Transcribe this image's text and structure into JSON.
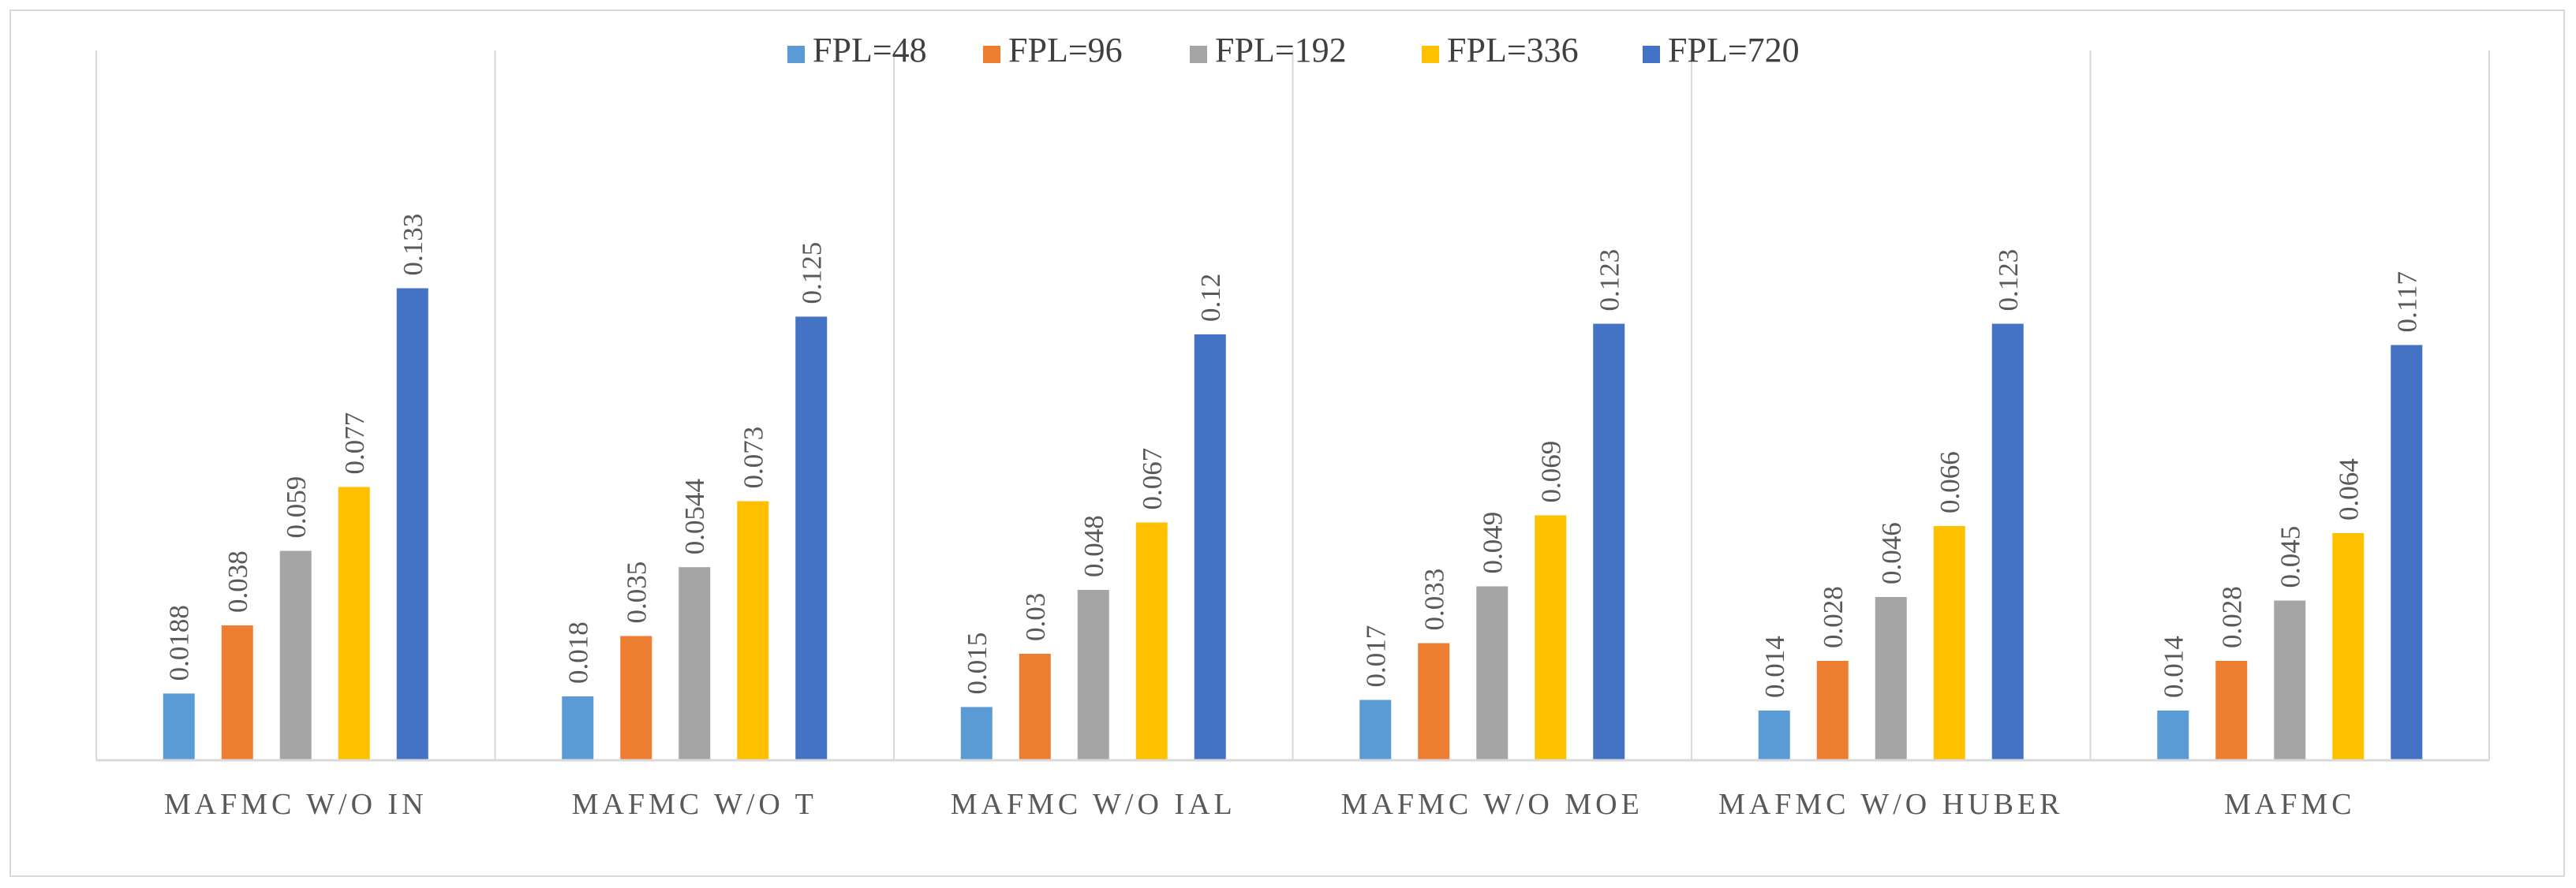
{
  "chart_data": {
    "type": "bar",
    "title": "",
    "xlabel": "",
    "ylabel": "",
    "ylim": [
      0,
      0.2
    ],
    "grid": "vertical separators",
    "legend_position": "top",
    "categories": [
      "MAFMC W/O IN",
      "MAFMC W/O T",
      "MAFMC W/O IAL",
      "MAFMC W/O MOE",
      "MAFMC W/O HUBER",
      "MAFMC"
    ],
    "series": [
      {
        "name": "FPL=48",
        "color": "#5b9bd5",
        "values": [
          0.0188,
          0.018,
          0.015,
          0.017,
          0.014,
          0.014
        ],
        "labels": [
          "0.0188",
          "0.018",
          "0.015",
          "0.017",
          "0.014",
          "0.014"
        ]
      },
      {
        "name": "FPL=96",
        "color": "#ed7d31",
        "values": [
          0.038,
          0.035,
          0.03,
          0.033,
          0.028,
          0.028
        ],
        "labels": [
          "0.038",
          "0.035",
          "0.03",
          "0.033",
          "0.028",
          "0.028"
        ]
      },
      {
        "name": "FPL=192",
        "color": "#a5a5a5",
        "values": [
          0.059,
          0.0544,
          0.048,
          0.049,
          0.046,
          0.045
        ],
        "labels": [
          "0.059",
          "0.0544",
          "0.048",
          "0.049",
          "0.046",
          "0.045"
        ]
      },
      {
        "name": "FPL=336",
        "color": "#ffc000",
        "values": [
          0.077,
          0.073,
          0.067,
          0.069,
          0.066,
          0.064
        ],
        "labels": [
          "0.077",
          "0.073",
          "0.067",
          "0.069",
          "0.066",
          "0.064"
        ]
      },
      {
        "name": "FPL=720",
        "color": "#4472c4",
        "values": [
          0.133,
          0.125,
          0.12,
          0.123,
          0.123,
          0.117
        ],
        "labels": [
          "0.133",
          "0.125",
          "0.12",
          "0.123",
          "0.123",
          "0.117"
        ]
      }
    ]
  }
}
